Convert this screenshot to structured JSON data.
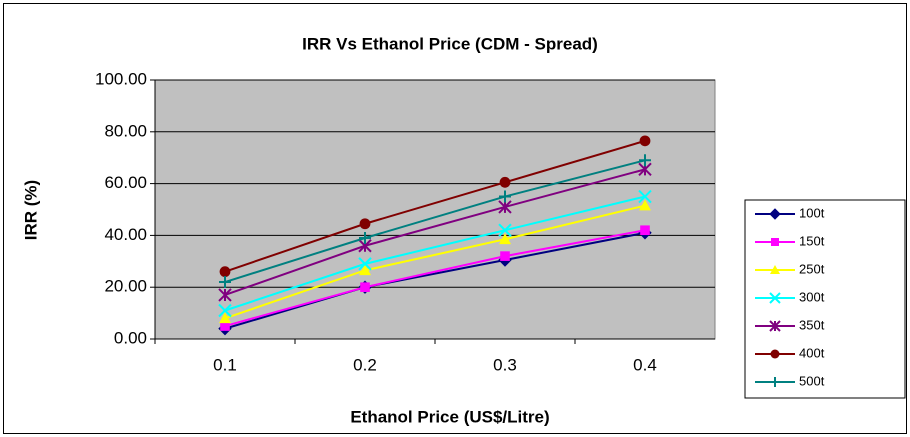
{
  "chart_data": {
    "type": "line",
    "title": "IRR Vs Ethanol Price (CDM - Spread)",
    "x_label": "Ethanol Price (US$/Litre)",
    "y_label": "IRR (%)",
    "categories": [
      "0.1",
      "0.2",
      "0.3",
      "0.4"
    ],
    "ylim": [
      0,
      100
    ],
    "yticks": [
      {
        "value": 0,
        "label": "0.00"
      },
      {
        "value": 20,
        "label": "20.00"
      },
      {
        "value": 40,
        "label": "40.00"
      },
      {
        "value": 60,
        "label": "60.00"
      },
      {
        "value": 80,
        "label": "80.00"
      },
      {
        "value": 100,
        "label": "100.00"
      }
    ],
    "grid": true,
    "legend": "right",
    "series": [
      {
        "name": "100t",
        "color": "#000080",
        "marker": "diamond",
        "values": [
          4,
          20,
          30.5,
          41
        ]
      },
      {
        "name": "150t",
        "color": "#ff00ff",
        "marker": "square",
        "values": [
          5,
          20,
          32,
          42
        ]
      },
      {
        "name": "250t",
        "color": "#ffff00",
        "marker": "triangle",
        "values": [
          8,
          26.5,
          38.5,
          51.5
        ]
      },
      {
        "name": "300t",
        "color": "#00ffff",
        "marker": "x",
        "values": [
          11,
          29,
          42,
          55
        ]
      },
      {
        "name": "350t",
        "color": "#800080",
        "marker": "star",
        "values": [
          17,
          36,
          51,
          65.5
        ]
      },
      {
        "name": "400t",
        "color": "#800000",
        "marker": "circle",
        "values": [
          26,
          44.5,
          60.5,
          76.5
        ]
      },
      {
        "name": "500t",
        "color": "#008080",
        "marker": "plus",
        "values": [
          22,
          39,
          55,
          69
        ]
      }
    ]
  }
}
